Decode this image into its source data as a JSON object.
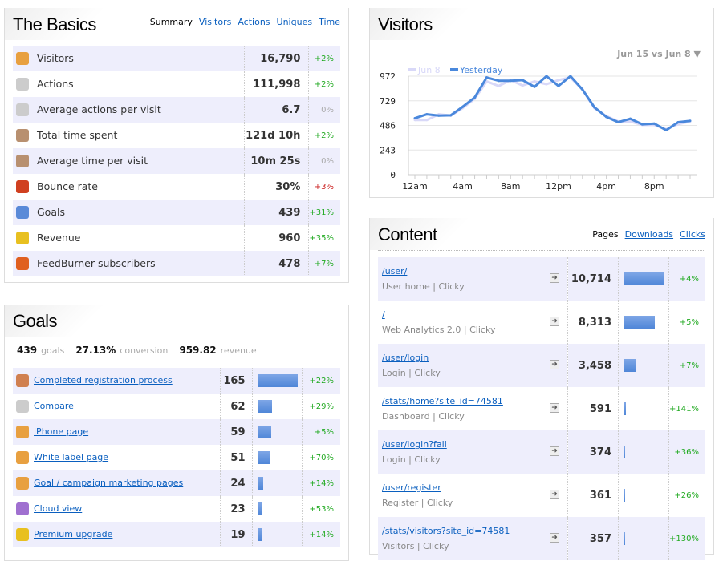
{
  "basics": {
    "title": "The Basics",
    "tabs": [
      {
        "label": "Summary",
        "active": true
      },
      {
        "label": "Visitors"
      },
      {
        "label": "Actions"
      },
      {
        "label": "Uniques"
      },
      {
        "label": "Time"
      }
    ],
    "rows": [
      {
        "icon": "visitors-icon",
        "color": "#e8a040",
        "label": "Visitors",
        "value": "16,790",
        "change": "+2%",
        "dir": "pos"
      },
      {
        "icon": "mouse-icon",
        "color": "#ccc",
        "label": "Actions",
        "value": "111,998",
        "change": "+2%",
        "dir": "pos"
      },
      {
        "icon": "mouse-icon",
        "color": "#ccc",
        "label": "Average actions per visit",
        "value": "6.7",
        "change": "0%",
        "dir": "zero"
      },
      {
        "icon": "clock-icon",
        "color": "#b89070",
        "label": "Total time spent",
        "value": "121d 10h",
        "change": "+2%",
        "dir": "pos"
      },
      {
        "icon": "clock-icon",
        "color": "#b89070",
        "label": "Average time per visit",
        "value": "10m 25s",
        "change": "0%",
        "dir": "zero"
      },
      {
        "icon": "bounce-icon",
        "color": "#d04020",
        "label": "Bounce rate",
        "value": "30%",
        "change": "+3%",
        "dir": "neg"
      },
      {
        "icon": "goal-flag-icon",
        "color": "#5a8ad8",
        "label": "Goals",
        "value": "439",
        "change": "+31%",
        "dir": "pos"
      },
      {
        "icon": "coins-icon",
        "color": "#e8c020",
        "label": "Revenue",
        "value": "960",
        "change": "+35%",
        "dir": "pos"
      },
      {
        "icon": "feedburner-icon",
        "color": "#e06020",
        "label": "FeedBurner subscribers",
        "value": "478",
        "change": "+7%",
        "dir": "pos"
      }
    ]
  },
  "goals": {
    "title": "Goals",
    "summary": [
      {
        "value": "439",
        "label": "goals"
      },
      {
        "value": "27.13%",
        "label": "conversion"
      },
      {
        "value": "959.82",
        "label": "revenue"
      }
    ],
    "rows": [
      {
        "icon": "user-icon",
        "color": "#d08050",
        "label": "Completed registration process",
        "value": "165",
        "n": 165,
        "change": "+22%"
      },
      {
        "icon": "mouse-icon",
        "color": "#ccc",
        "label": "Compare",
        "value": "62",
        "n": 62,
        "change": "+29%"
      },
      {
        "icon": "flag-icon",
        "color": "#e8a040",
        "label": "iPhone page",
        "value": "59",
        "n": 59,
        "change": "+5%"
      },
      {
        "icon": "flag-icon",
        "color": "#e8a040",
        "label": "White label page",
        "value": "51",
        "n": 51,
        "change": "+70%"
      },
      {
        "icon": "flag-icon",
        "color": "#e8a040",
        "label": "Goal / campaign marketing pages",
        "value": "24",
        "n": 24,
        "change": "+14%"
      },
      {
        "icon": "flag-icon",
        "color": "#a070d0",
        "label": "Cloud view",
        "value": "23",
        "n": 23,
        "change": "+53%"
      },
      {
        "icon": "coins-icon",
        "color": "#e8c020",
        "label": "Premium upgrade",
        "value": "19",
        "n": 19,
        "change": "+14%"
      }
    ]
  },
  "visitors": {
    "title": "Visitors",
    "range": "Jun 15 vs Jun 8 ▼"
  },
  "chart_data": {
    "type": "line",
    "x": [
      "12am",
      "1am",
      "2am",
      "3am",
      "4am",
      "5am",
      "6am",
      "7am",
      "8am",
      "9am",
      "10am",
      "11am",
      "12pm",
      "1pm",
      "2pm",
      "3pm",
      "4pm",
      "5pm",
      "6pm",
      "7pm",
      "8pm",
      "9pm",
      "10pm",
      "11pm"
    ],
    "xticks": [
      "12am",
      "4am",
      "8am",
      "12pm",
      "4pm",
      "8pm"
    ],
    "yticks": [
      0,
      243,
      486,
      729,
      972
    ],
    "ylim": [
      0,
      972
    ],
    "series": [
      {
        "name": "Jun 8",
        "color": "#d8d8f8",
        "values": [
          539,
          539,
          596,
          583,
          657,
          749,
          920,
          875,
          933,
          880,
          920,
          893,
          933,
          959,
          841,
          657,
          578,
          525,
          525,
          491,
          491,
          447,
          499,
          525
        ]
      },
      {
        "name": "Yesterday",
        "color": "#4a88dc",
        "values": [
          557,
          596,
          583,
          586,
          670,
          762,
          959,
          927,
          927,
          933,
          867,
          972,
          875,
          972,
          841,
          665,
          570,
          518,
          552,
          497,
          504,
          439,
          518,
          531
        ]
      }
    ],
    "legend": "top-left"
  },
  "content": {
    "title": "Content",
    "tabs": [
      {
        "label": "Pages",
        "active": true
      },
      {
        "label": "Downloads"
      },
      {
        "label": "Clicks"
      }
    ],
    "rows": [
      {
        "path": "/user/",
        "title": "User home | Clicky",
        "value": "10,714",
        "n": 10714,
        "change": "+4%"
      },
      {
        "path": "/",
        "title": "Web Analytics 2.0 | Clicky",
        "value": "8,313",
        "n": 8313,
        "change": "+5%"
      },
      {
        "path": "/user/login",
        "title": "Login | Clicky",
        "value": "3,458",
        "n": 3458,
        "change": "+7%"
      },
      {
        "path": "/stats/home?site_id=74581",
        "title": "Dashboard | Clicky",
        "value": "591",
        "n": 591,
        "change": "+141%"
      },
      {
        "path": "/user/login?fail",
        "title": "Login | Clicky",
        "value": "374",
        "n": 374,
        "change": "+36%"
      },
      {
        "path": "/user/register",
        "title": "Register | Clicky",
        "value": "361",
        "n": 361,
        "change": "+26%"
      },
      {
        "path": "/stats/visitors?site_id=74581",
        "title": "Visitors | Clicky",
        "value": "357",
        "n": 357,
        "change": "+130%"
      }
    ]
  }
}
